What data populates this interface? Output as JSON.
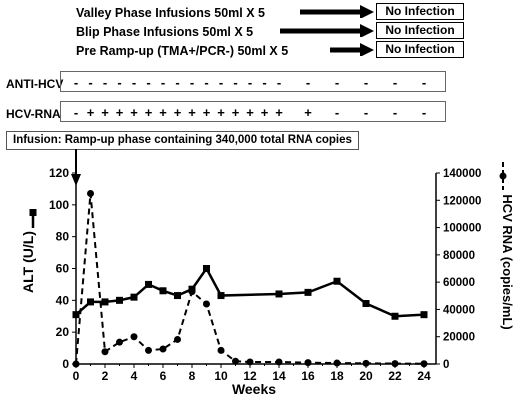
{
  "protocol_lines": [
    {
      "label": "Valley Phase Infusions 50ml X 5",
      "result": "No Infection"
    },
    {
      "label": "Blip Phase Infusions 50ml X 5",
      "result": "No Infection"
    },
    {
      "label": "Pre Ramp-up (TMA+/PCR-) 50ml X 5",
      "result": "No Infection"
    }
  ],
  "anti_hcv": {
    "label": "ANTI-HCV",
    "marks": [
      {
        "week": 0,
        "sign": "-"
      },
      {
        "week": 1,
        "sign": "-"
      },
      {
        "week": 2,
        "sign": "-"
      },
      {
        "week": 3,
        "sign": "-"
      },
      {
        "week": 4,
        "sign": "-"
      },
      {
        "week": 5,
        "sign": "-"
      },
      {
        "week": 6,
        "sign": "-"
      },
      {
        "week": 7,
        "sign": "-"
      },
      {
        "week": 8,
        "sign": "-"
      },
      {
        "week": 9,
        "sign": "-"
      },
      {
        "week": 10,
        "sign": "-"
      },
      {
        "week": 11,
        "sign": "-"
      },
      {
        "week": 12,
        "sign": "-"
      },
      {
        "week": 13,
        "sign": "-"
      },
      {
        "week": 14,
        "sign": "-"
      },
      {
        "week": 16,
        "sign": "-"
      },
      {
        "week": 18,
        "sign": "-"
      },
      {
        "week": 20,
        "sign": "-"
      },
      {
        "week": 22,
        "sign": "-"
      },
      {
        "week": 24,
        "sign": "-"
      }
    ]
  },
  "hcv_rna_status": {
    "label": "HCV-RNA",
    "marks": [
      {
        "week": 0,
        "sign": "-"
      },
      {
        "week": 1,
        "sign": "+"
      },
      {
        "week": 2,
        "sign": "+"
      },
      {
        "week": 3,
        "sign": "+"
      },
      {
        "week": 4,
        "sign": "+"
      },
      {
        "week": 5,
        "sign": "+"
      },
      {
        "week": 6,
        "sign": "+"
      },
      {
        "week": 7,
        "sign": "+"
      },
      {
        "week": 8,
        "sign": "+"
      },
      {
        "week": 9,
        "sign": "+"
      },
      {
        "week": 10,
        "sign": "+"
      },
      {
        "week": 11,
        "sign": "+"
      },
      {
        "week": 12,
        "sign": "+"
      },
      {
        "week": 13,
        "sign": "+"
      },
      {
        "week": 14,
        "sign": "+"
      },
      {
        "week": 16,
        "sign": "+"
      },
      {
        "week": 18,
        "sign": "-"
      },
      {
        "week": 20,
        "sign": "-"
      },
      {
        "week": 22,
        "sign": "-"
      },
      {
        "week": 24,
        "sign": "-"
      }
    ]
  },
  "infusion_label": "Infusion: Ramp-up phase containing 340,000 total RNA copies",
  "chart_data": {
    "type": "line",
    "xlabel": "Weeks",
    "ylabel_left": "ALT (U/L)",
    "ylabel_right": "HCV RNA (copies/mL)",
    "xlim": [
      0,
      24
    ],
    "ylim_left": [
      0,
      120
    ],
    "ylim_right": [
      0,
      140000
    ],
    "x_ticks": [
      0,
      2,
      4,
      6,
      8,
      10,
      12,
      14,
      16,
      18,
      20,
      22,
      24
    ],
    "y_ticks_left": [
      0,
      20,
      40,
      60,
      80,
      100,
      120
    ],
    "y_ticks_right": [
      0,
      20000,
      40000,
      60000,
      80000,
      100000,
      120000,
      140000
    ],
    "y_tick_labels_right": [
      "0",
      "20000",
      "40000",
      "60000",
      "80000",
      "100000",
      "120000",
      "140000"
    ],
    "series": [
      {
        "name": "ALT",
        "axis": "left",
        "style": "solid",
        "marker": "square",
        "x": [
          0,
          1,
          2,
          3,
          4,
          5,
          6,
          7,
          8,
          9,
          10,
          14,
          16,
          18,
          20,
          22,
          24
        ],
        "values": [
          31,
          39,
          39,
          40,
          42,
          50,
          46,
          43,
          47,
          60,
          43,
          44,
          45,
          52,
          38,
          30,
          31
        ]
      },
      {
        "name": "HCV RNA",
        "axis": "right",
        "style": "dashed",
        "marker": "circle",
        "x": [
          0,
          1,
          2,
          3,
          4,
          5,
          6,
          7,
          8,
          9,
          10,
          11,
          12,
          14,
          16,
          18,
          20,
          22,
          24
        ],
        "values": [
          0,
          125000,
          9000,
          16000,
          20000,
          10000,
          11000,
          18000,
          53000,
          44000,
          10000,
          2000,
          1500,
          1500,
          1000,
          700,
          500,
          300,
          200
        ]
      }
    ],
    "grid": false
  },
  "colors": {
    "line": "#000000",
    "box_border": "#555555"
  },
  "icons": {
    "infusion_arrow": "down-arrow-icon",
    "result_arrow": "right-arrow-icon"
  }
}
